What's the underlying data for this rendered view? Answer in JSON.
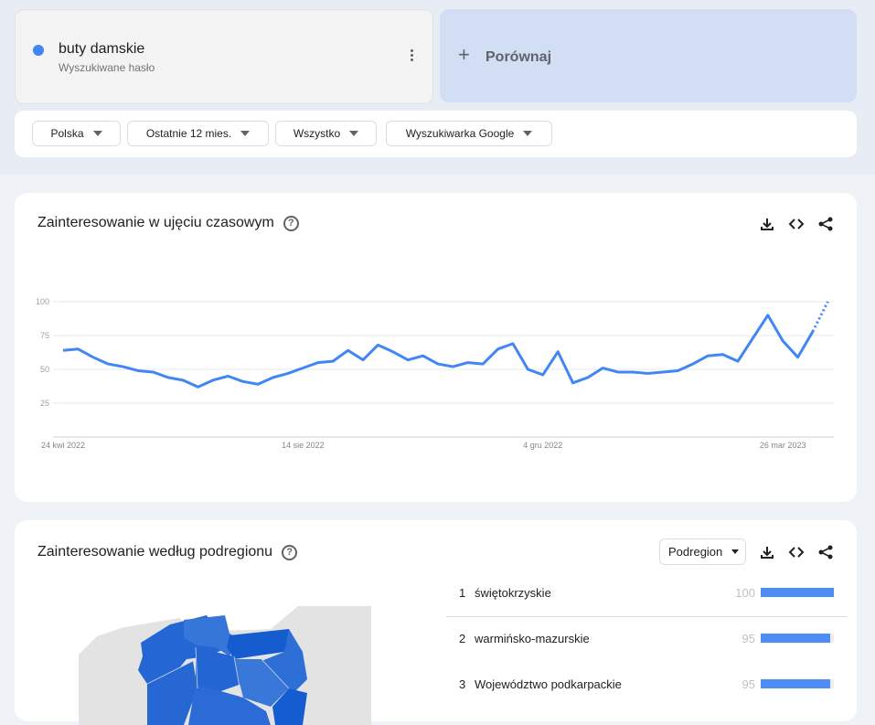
{
  "search_term": {
    "name": "buty damskie",
    "subtitle": "Wyszukiwane hasło",
    "color": "#4285f4"
  },
  "compare": {
    "label": "Porównaj"
  },
  "filters": [
    {
      "label": "Polska"
    },
    {
      "label": "Ostatnie 12 mies."
    },
    {
      "label": "Wszystko"
    },
    {
      "label": "Wyszukiwarka Google"
    }
  ],
  "time_card": {
    "title": "Zainteresowanie w ujęciu czasowym",
    "help": "?"
  },
  "region_card": {
    "title": "Zainteresowanie według podregionu",
    "help": "?",
    "select": "Podregion",
    "rows": [
      {
        "rank": "1",
        "name": "świętokrzyskie",
        "value": 100
      },
      {
        "rank": "2",
        "name": "warmińsko-mazurskie",
        "value": 95
      },
      {
        "rank": "3",
        "name": "Województwo podkarpackie",
        "value": 95
      }
    ]
  },
  "chart_data": {
    "type": "line",
    "title": "",
    "xlabel": "",
    "ylabel": "",
    "ylim": [
      0,
      100
    ],
    "yticks": [
      "25",
      "50",
      "75",
      "100"
    ],
    "xtick_labels": [
      "24 kwi 2022",
      "14 sie 2022",
      "4 gru 2022",
      "26 mar 2023"
    ],
    "grid": true,
    "color": "#4285f4",
    "partial_last_point": true,
    "x": [
      "2022-04-24",
      "2022-05-01",
      "2022-05-08",
      "2022-05-15",
      "2022-05-22",
      "2022-05-29",
      "2022-06-05",
      "2022-06-12",
      "2022-06-19",
      "2022-06-26",
      "2022-07-03",
      "2022-07-10",
      "2022-07-17",
      "2022-07-24",
      "2022-07-31",
      "2022-08-07",
      "2022-08-14",
      "2022-08-21",
      "2022-08-28",
      "2022-09-04",
      "2022-09-11",
      "2022-09-18",
      "2022-09-25",
      "2022-10-02",
      "2022-10-09",
      "2022-10-16",
      "2022-10-23",
      "2022-10-30",
      "2022-11-06",
      "2022-11-13",
      "2022-11-20",
      "2022-11-27",
      "2022-12-04",
      "2022-12-11",
      "2022-12-18",
      "2022-12-25",
      "2023-01-01",
      "2023-01-08",
      "2023-01-15",
      "2023-01-22",
      "2023-01-29",
      "2023-02-05",
      "2023-02-12",
      "2023-02-19",
      "2023-02-26",
      "2023-03-05",
      "2023-03-12",
      "2023-03-19",
      "2023-03-26",
      "2023-04-02",
      "2023-04-09",
      "2023-04-16"
    ],
    "values": [
      64,
      65,
      59,
      54,
      52,
      49,
      48,
      44,
      42,
      37,
      42,
      45,
      41,
      39,
      44,
      47,
      51,
      55,
      56,
      64,
      57,
      68,
      63,
      57,
      60,
      54,
      52,
      55,
      54,
      65,
      69,
      50,
      46,
      63,
      40,
      44,
      51,
      48,
      48,
      47,
      48,
      49,
      54,
      60,
      61,
      56,
      73,
      90,
      71,
      59,
      78,
      100
    ]
  }
}
